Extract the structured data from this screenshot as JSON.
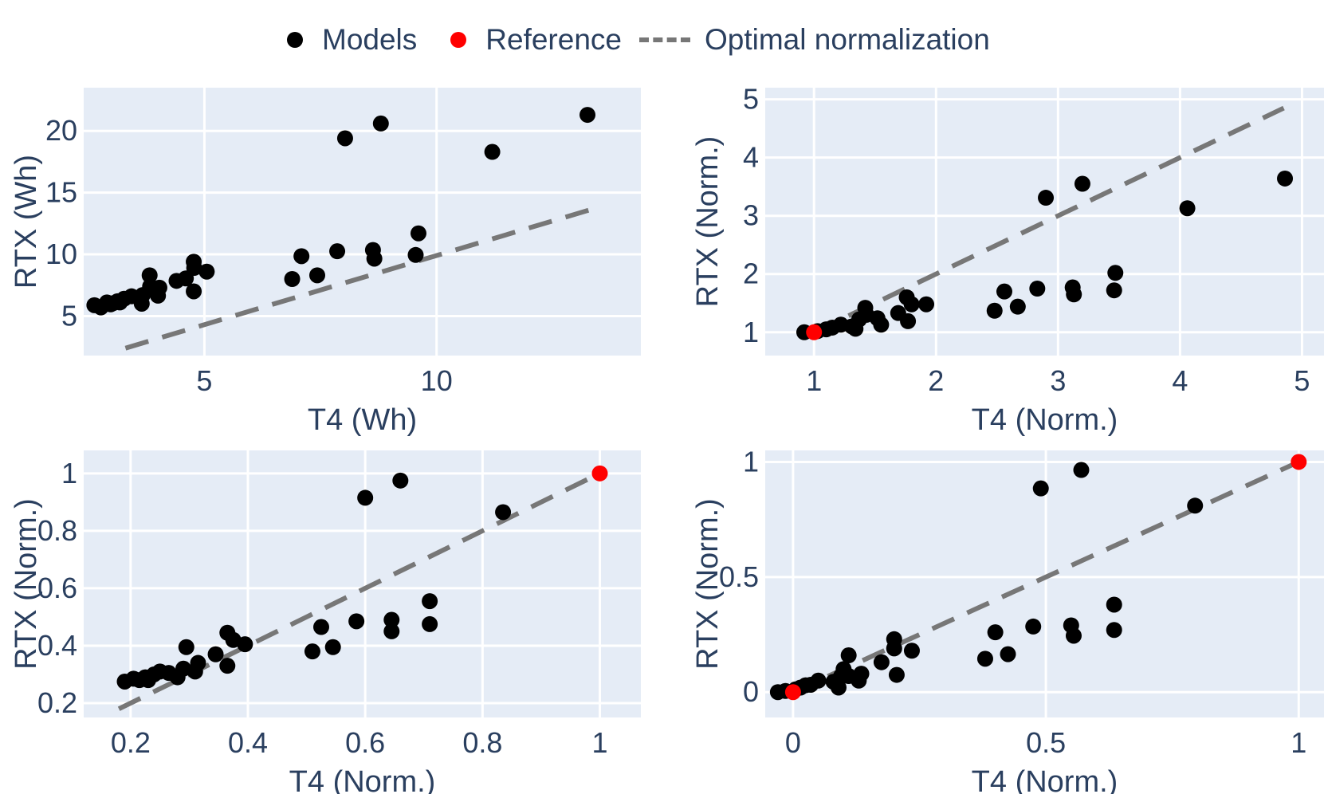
{
  "legend": {
    "models_label": "Models",
    "reference_label": "Reference",
    "line_label": "Optimal normalization"
  },
  "colors": {
    "plot_bg": "#e5ecf6",
    "grid": "#ffffff",
    "text": "#2a3f5f",
    "model": "#000000",
    "reference": "#ff0000",
    "line": "#777777"
  },
  "chart_data": [
    {
      "type": "scatter",
      "title": "",
      "xlabel": "T4 (Wh)",
      "ylabel": "RTX (Wh)",
      "xlim": [
        2.4,
        14.4
      ],
      "ylim": [
        1.8,
        23.5
      ],
      "xticks": [
        5,
        10
      ],
      "xtick_labels": [
        "5",
        "10"
      ],
      "yticks": [
        5,
        10,
        15,
        20
      ],
      "ytick_labels": [
        "5",
        "10",
        "15",
        "20"
      ],
      "line": {
        "x": [
          3.3,
          13.3
        ],
        "y": [
          2.4,
          13.6
        ]
      },
      "reference": [],
      "series": [
        {
          "name": "Models",
          "x": [
            2.63,
            2.77,
            2.9,
            2.98,
            3.04,
            3.13,
            3.18,
            3.27,
            3.43,
            3.67,
            3.65,
            3.83,
            3.82,
            4.0,
            4.03,
            4.4,
            4.6,
            4.77,
            4.77,
            4.78,
            5.05,
            6.89,
            7.09,
            7.43,
            7.86,
            8.03,
            8.63,
            8.66,
            8.8,
            9.55,
            9.61,
            11.2,
            13.25
          ],
          "y": [
            5.88,
            5.7,
            6.1,
            5.95,
            6.05,
            6.2,
            6.1,
            6.4,
            6.6,
            6.7,
            6.0,
            7.4,
            8.3,
            6.65,
            7.3,
            7.85,
            8.05,
            9.4,
            7.0,
            8.9,
            8.6,
            8.0,
            9.85,
            8.3,
            10.25,
            19.4,
            10.35,
            9.65,
            20.6,
            9.95,
            11.7,
            18.3,
            21.3
          ]
        }
      ]
    },
    {
      "type": "scatter",
      "title": "",
      "xlabel": "T4 (Norm.)",
      "ylabel": "RTX (Norm.)",
      "xlim": [
        0.6,
        5.18
      ],
      "ylim": [
        0.6,
        5.2
      ],
      "xticks": [
        1,
        2,
        3,
        4,
        5
      ],
      "xtick_labels": [
        "1",
        "2",
        "3",
        "4",
        "5"
      ],
      "yticks": [
        1,
        2,
        3,
        4,
        5
      ],
      "ytick_labels": [
        "1",
        "2",
        "3",
        "4",
        "5"
      ],
      "line": {
        "x": [
          1.0,
          4.85
        ],
        "y": [
          1.0,
          4.85
        ]
      },
      "reference": [
        [
          1.0,
          1.0
        ]
      ],
      "series": [
        {
          "name": "Models",
          "x": [
            0.92,
            1.03,
            1.1,
            1.15,
            1.22,
            1.31,
            1.34,
            1.37,
            1.42,
            1.43,
            1.52,
            1.55,
            1.69,
            1.76,
            1.77,
            1.8,
            1.92,
            2.48,
            2.56,
            2.67,
            2.83,
            2.9,
            3.12,
            3.13,
            3.2,
            3.46,
            3.47,
            4.06,
            4.86
          ],
          "y": [
            1.0,
            1.02,
            1.05,
            1.08,
            1.13,
            1.1,
            1.06,
            1.22,
            1.42,
            1.3,
            1.24,
            1.13,
            1.33,
            1.6,
            1.19,
            1.48,
            1.48,
            1.37,
            1.7,
            1.44,
            1.75,
            3.31,
            1.77,
            1.65,
            3.55,
            1.72,
            2.02,
            3.13,
            3.64
          ]
        }
      ]
    },
    {
      "type": "scatter",
      "title": "",
      "xlabel": "T4 (Norm.)",
      "ylabel": "RTX (Norm.)",
      "xlim": [
        0.12,
        1.07
      ],
      "ylim": [
        0.15,
        1.08
      ],
      "xticks": [
        0.2,
        0.4,
        0.6,
        0.8,
        1
      ],
      "xtick_labels": [
        "0.2",
        "0.4",
        "0.6",
        "0.8",
        "1"
      ],
      "yticks": [
        0.2,
        0.4,
        0.6,
        0.8,
        1
      ],
      "ytick_labels": [
        "0.2",
        "0.4",
        "0.6",
        "0.8",
        "1"
      ],
      "line": {
        "x": [
          0.18,
          1.0
        ],
        "y": [
          0.18,
          1.0
        ]
      },
      "reference": [
        [
          1.0,
          1.0
        ]
      ],
      "series": [
        {
          "name": "Models",
          "x": [
            0.19,
            0.205,
            0.215,
            0.225,
            0.23,
            0.24,
            0.25,
            0.265,
            0.28,
            0.29,
            0.295,
            0.31,
            0.315,
            0.345,
            0.365,
            0.365,
            0.375,
            0.395,
            0.51,
            0.525,
            0.545,
            0.585,
            0.6,
            0.645,
            0.645,
            0.66,
            0.71,
            0.71,
            0.835
          ],
          "y": [
            0.275,
            0.285,
            0.28,
            0.29,
            0.28,
            0.3,
            0.31,
            0.305,
            0.29,
            0.32,
            0.395,
            0.31,
            0.34,
            0.37,
            0.33,
            0.445,
            0.42,
            0.405,
            0.38,
            0.465,
            0.395,
            0.485,
            0.915,
            0.49,
            0.45,
            0.975,
            0.475,
            0.555,
            0.865
          ]
        }
      ]
    },
    {
      "type": "scatter",
      "title": "",
      "xlabel": "T4 (Norm.)",
      "ylabel": "RTX (Norm.)",
      "xlim": [
        -0.055,
        1.05
      ],
      "ylim": [
        -0.11,
        1.05
      ],
      "xticks": [
        0,
        0.5,
        1
      ],
      "xtick_labels": [
        "0",
        "0.5",
        "1"
      ],
      "yticks": [
        0,
        0.5,
        1
      ],
      "ytick_labels": [
        "0",
        "0.5",
        "1"
      ],
      "line": {
        "x": [
          0.0,
          1.0
        ],
        "y": [
          0.0,
          1.0
        ]
      },
      "reference": [
        [
          0.0,
          0.0
        ],
        [
          1.0,
          1.0
        ]
      ],
      "series": [
        {
          "name": "Models",
          "x": [
            -0.03,
            -0.015,
            0.005,
            0.015,
            0.025,
            0.035,
            0.05,
            0.08,
            0.09,
            0.095,
            0.1,
            0.11,
            0.11,
            0.13,
            0.135,
            0.175,
            0.2,
            0.2,
            0.205,
            0.235,
            0.38,
            0.4,
            0.425,
            0.475,
            0.49,
            0.55,
            0.555,
            0.57,
            0.635,
            0.635,
            0.795
          ],
          "y": [
            0.0,
            0.005,
            0.012,
            0.02,
            0.03,
            0.032,
            0.05,
            0.045,
            0.02,
            0.07,
            0.1,
            0.16,
            0.07,
            0.05,
            0.08,
            0.13,
            0.23,
            0.19,
            0.075,
            0.18,
            0.145,
            0.26,
            0.165,
            0.285,
            0.885,
            0.29,
            0.245,
            0.965,
            0.27,
            0.38,
            0.81
          ]
        }
      ]
    }
  ]
}
